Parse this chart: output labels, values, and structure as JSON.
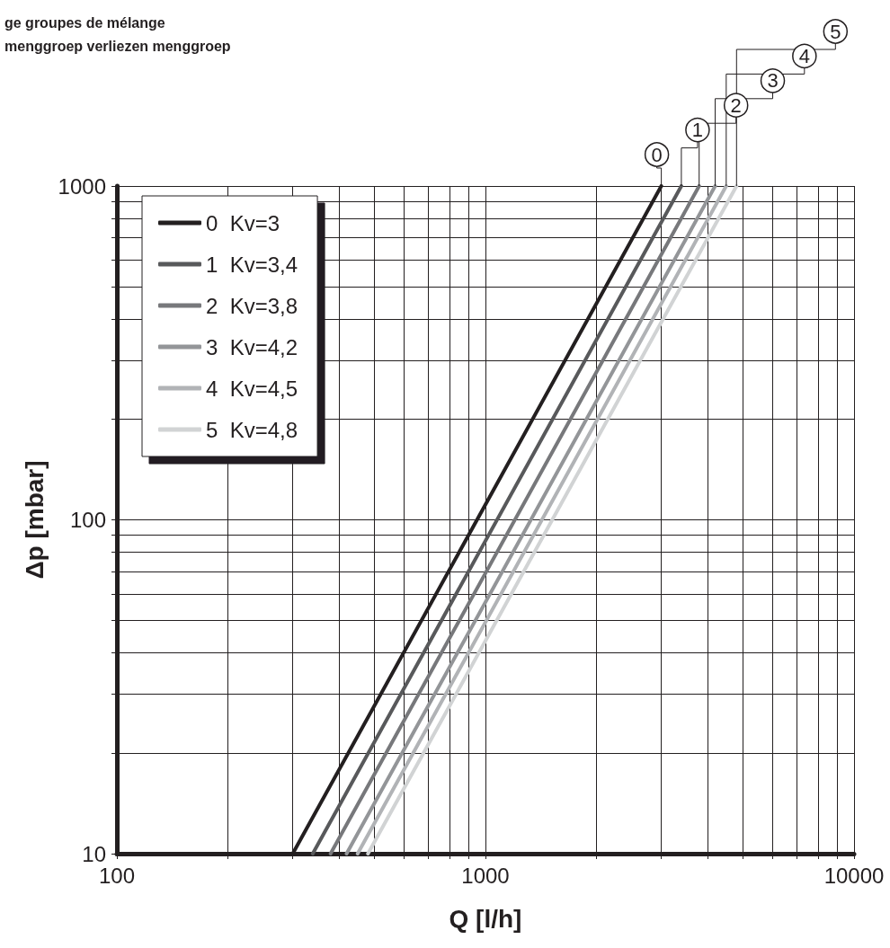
{
  "chart_data": {
    "type": "line",
    "title": "ge groupes de mélange",
    "subtitle": "menggroep verliezen menggroep",
    "xlabel": "Q [l/h]",
    "ylabel": "Δp [mbar]",
    "log": "xy",
    "grid": true,
    "legend": "top left",
    "marker": "none",
    "line_style": "solid",
    "xlim": [
      100,
      10000
    ],
    "xticks": [
      100,
      {
        "value": 200,
        "label": null
      },
      {
        "value": 300,
        "label": null
      },
      {
        "value": 400,
        "label": null
      },
      {
        "value": 500,
        "label": null
      },
      {
        "value": 600,
        "label": null
      },
      {
        "value": 700,
        "label": null
      },
      {
        "value": 800,
        "label": null
      },
      {
        "value": 900,
        "label": null
      },
      1000,
      {
        "value": 2000,
        "label": null
      },
      {
        "value": 3000,
        "label": null
      },
      {
        "value": 4000,
        "label": null
      },
      {
        "value": 5000,
        "label": null
      },
      {
        "value": 6000,
        "label": null
      },
      {
        "value": 7000,
        "label": null
      },
      {
        "value": 8000,
        "label": null
      },
      {
        "value": 9000,
        "label": null
      },
      10000
    ],
    "ylim": [
      10,
      1000
    ],
    "yticks": [
      10,
      {
        "value": 20,
        "label": null
      },
      {
        "value": 30,
        "label": null
      },
      {
        "value": 40,
        "label": null
      },
      {
        "value": 50,
        "label": null
      },
      {
        "value": 60,
        "label": null
      },
      {
        "value": 70,
        "label": null
      },
      {
        "value": 80,
        "label": null
      },
      {
        "value": 90,
        "label": null
      },
      100,
      {
        "value": 200,
        "label": null
      },
      {
        "value": 300,
        "label": null
      },
      {
        "value": 400,
        "label": null
      },
      {
        "value": 500,
        "label": null
      },
      {
        "value": 600,
        "label": null
      },
      {
        "value": 700,
        "label": null
      },
      {
        "value": 800,
        "label": null
      },
      {
        "value": 900,
        "label": null
      },
      1000
    ],
    "series": [
      {
        "name": "0  Kv=3",
        "color": "#231f20",
        "x": [
          300,
          3000
        ],
        "values": [
          10,
          1000
        ]
      },
      {
        "name": "1  Kv=3,4",
        "color": "#58595b",
        "x": [
          340,
          3400
        ],
        "values": [
          10,
          1000
        ]
      },
      {
        "name": "2  Kv=3,8",
        "color": "#77787b",
        "x": [
          380,
          3800
        ],
        "values": [
          10,
          1000
        ]
      },
      {
        "name": "3  Kv=4,2",
        "color": "#939598",
        "x": [
          420,
          4200
        ],
        "values": [
          10,
          1000
        ]
      },
      {
        "name": "4  Kv=4,5",
        "color": "#b1b3b6",
        "x": [
          450,
          4500
        ],
        "values": [
          10,
          1000
        ]
      },
      {
        "name": "5  Kv=4,8",
        "color": "#d1d3d4",
        "x": [
          480,
          4800
        ],
        "values": [
          10,
          1000
        ]
      }
    ],
    "annotations": [
      {
        "text": "0",
        "x": 3000,
        "y": 1000
      },
      {
        "text": "1",
        "x": 3400,
        "y": 1000
      },
      {
        "text": "2",
        "x": 3800,
        "y": 1000
      },
      {
        "text": "3",
        "x": 4200,
        "y": 1000
      },
      {
        "text": "4",
        "x": 4500,
        "y": 1000
      },
      {
        "text": "5",
        "x": 4800,
        "y": 1000
      }
    ]
  }
}
